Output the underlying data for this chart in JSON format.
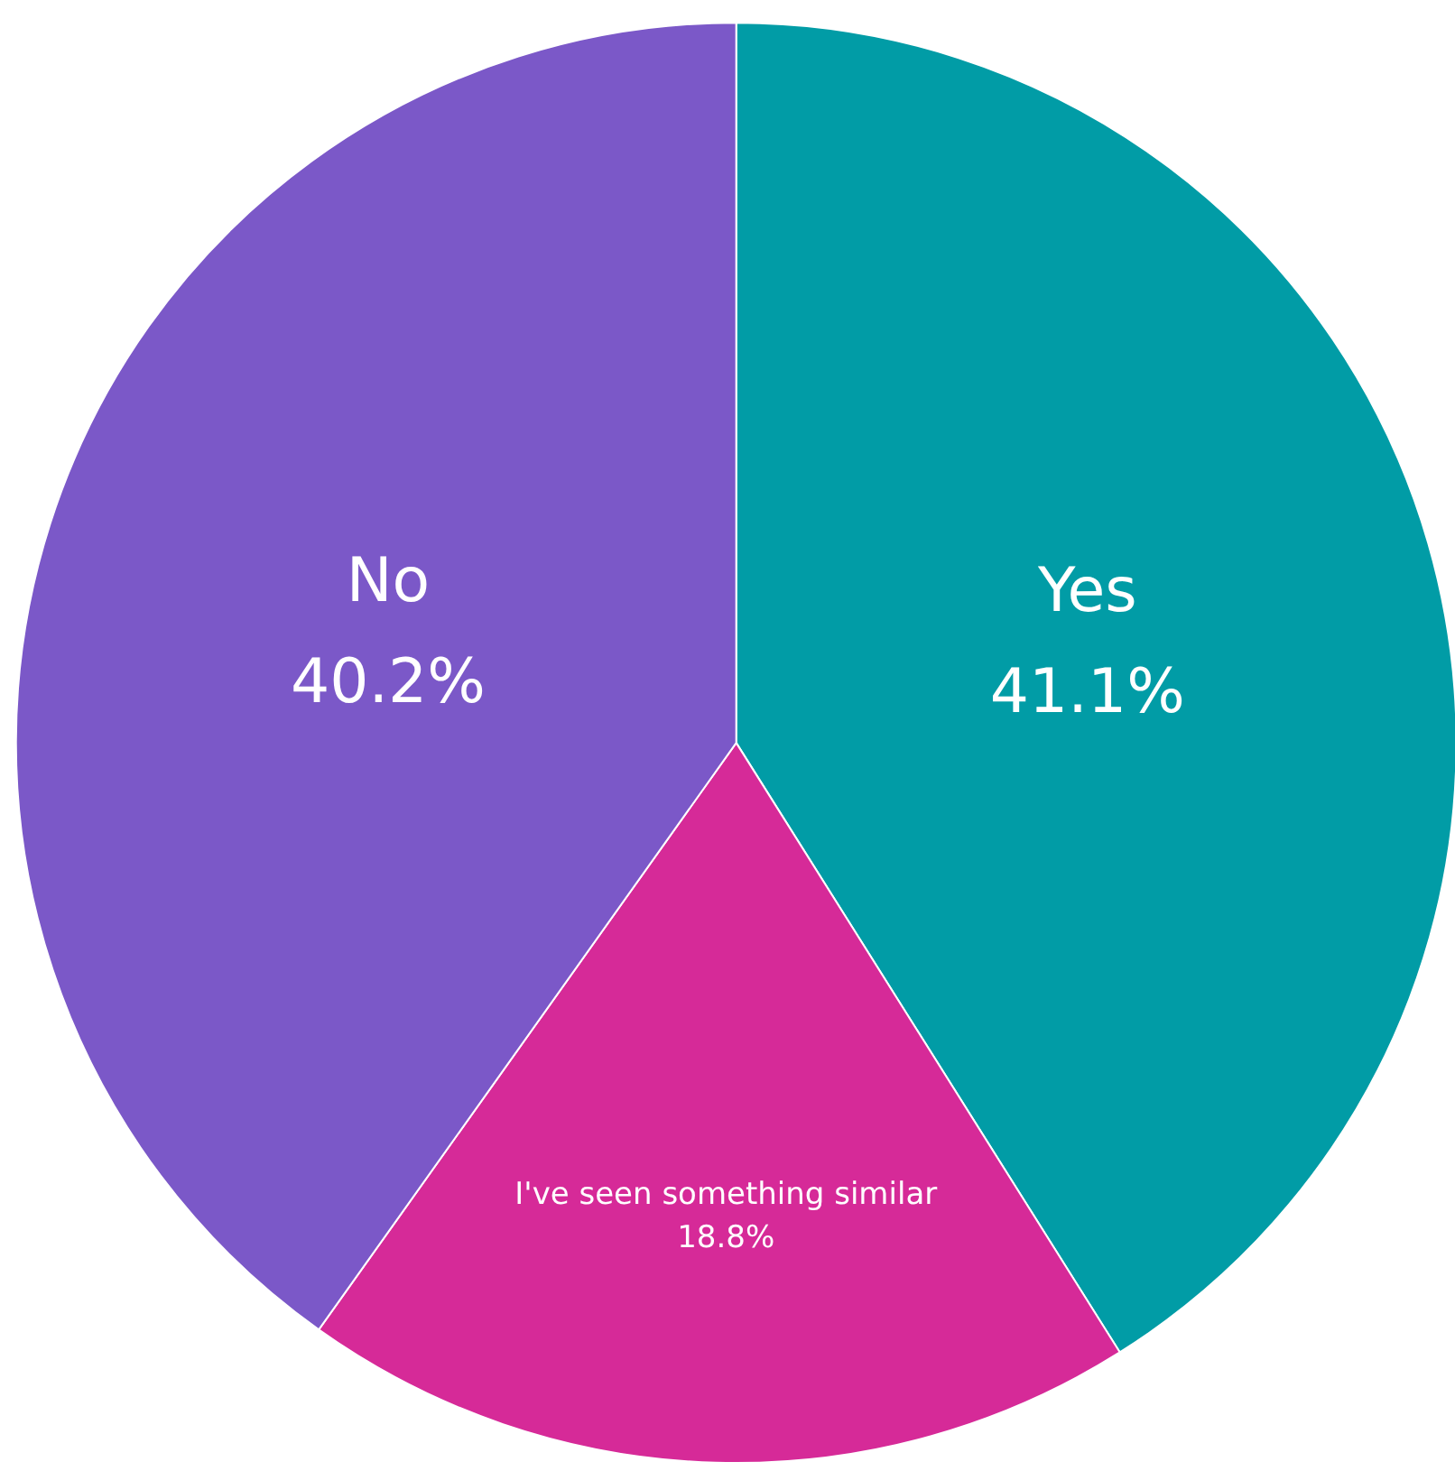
{
  "chart_data": {
    "type": "pie",
    "categories": [
      "Yes",
      "I've seen something similar",
      "No"
    ],
    "values": [
      41.1,
      18.8,
      40.2
    ],
    "value_labels": [
      "41.1%",
      "18.8%",
      "40.2%"
    ],
    "colors": [
      "#019ca6",
      "#d62a98",
      "#7b58c8"
    ],
    "legend": false
  }
}
